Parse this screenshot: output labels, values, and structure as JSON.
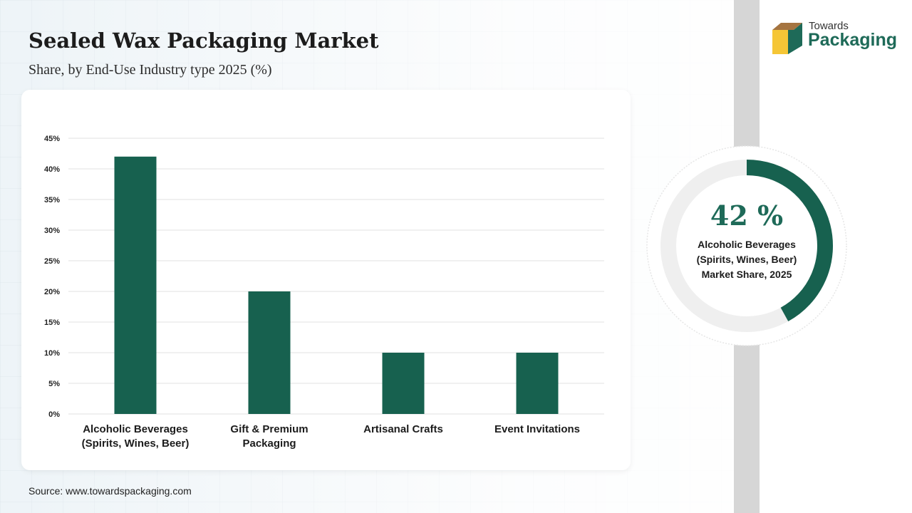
{
  "header": {
    "title": "Sealed Wax Packaging Market",
    "subtitle": "Share, by End-Use Industry type 2025 (%)"
  },
  "logo": {
    "line1": "Towards",
    "line2": "Packaging",
    "icon": "box-logo-icon"
  },
  "colors": {
    "bar": "#17614f",
    "accent": "#1e6a58",
    "donut_track": "#efefef",
    "gridline": "#e2e2e2"
  },
  "chart_data": {
    "type": "bar",
    "title": "Sealed Wax Packaging Market",
    "subtitle": "Share, by End-Use Industry type 2025 (%)",
    "categories": [
      [
        "Alcoholic Beverages",
        "(Spirits, Wines, Beer)"
      ],
      [
        "Gift & Premium",
        "Packaging"
      ],
      [
        "Artisanal Crafts"
      ],
      [
        "Event Invitations"
      ]
    ],
    "values": [
      42,
      20,
      10,
      10
    ],
    "ylim": [
      0,
      45
    ],
    "yticks": [
      0,
      5,
      10,
      15,
      20,
      25,
      30,
      35,
      40,
      45
    ],
    "ytick_labels": [
      "0%",
      "5%",
      "10%",
      "15%",
      "20%",
      "25%",
      "30%",
      "35%",
      "40%",
      "45%"
    ],
    "xlabel": "",
    "ylabel": "",
    "grid": true,
    "legend": "none"
  },
  "highlight": {
    "value": 42,
    "display": "42 %",
    "label_lines": [
      "Alcoholic Beverages",
      "(Spirits, Wines, Beer)",
      "Market Share, 2025"
    ]
  },
  "footer": {
    "source": "Source: www.towardspackaging.com"
  }
}
